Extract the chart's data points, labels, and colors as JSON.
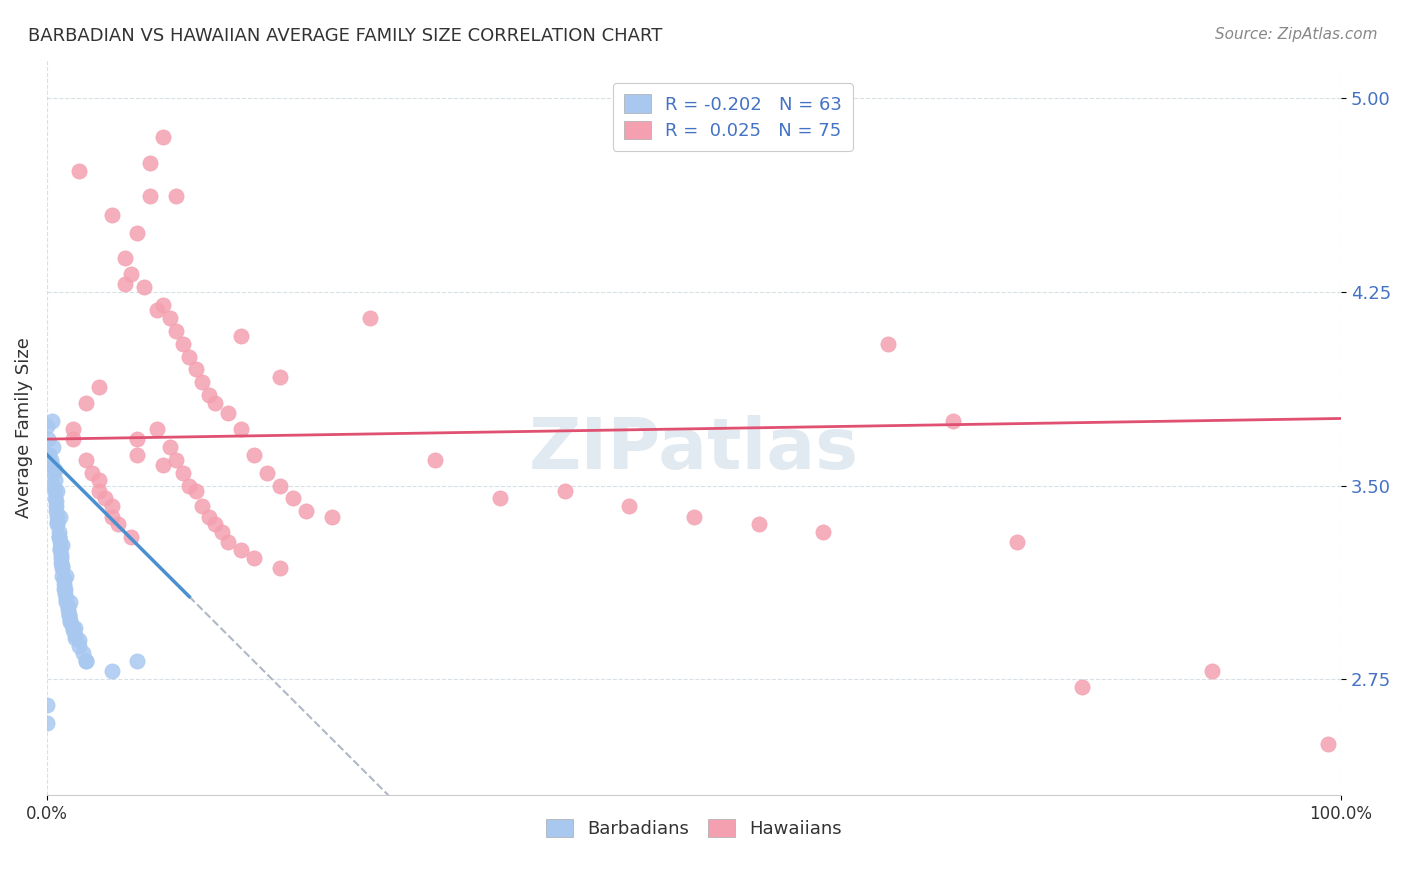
{
  "title": "BARBADIAN VS HAWAIIAN AVERAGE FAMILY SIZE CORRELATION CHART",
  "source": "Source: ZipAtlas.com",
  "ylabel": "Average Family Size",
  "yticks": [
    2.75,
    3.5,
    4.25,
    5.0
  ],
  "xlim": [
    0.0,
    1.0
  ],
  "ylim": [
    2.3,
    5.15
  ],
  "barbadian_R": "-0.202",
  "barbadian_N": "63",
  "hawaiian_R": "0.025",
  "hawaiian_N": "75",
  "barbadian_color": "#a8c8f0",
  "hawaiian_color": "#f4a0b0",
  "trend_barbadian_color": "#4a90d0",
  "trend_hawaiian_color": "#e05070",
  "trend_dashed_color": "#b0b8c8",
  "watermark_color": "#d0dce8",
  "background_color": "#ffffff",
  "barbadian_points": [
    [
      0.0,
      3.73
    ],
    [
      0.005,
      3.65
    ],
    [
      0.005,
      3.55
    ],
    [
      0.005,
      3.5
    ],
    [
      0.006,
      3.48
    ],
    [
      0.006,
      3.45
    ],
    [
      0.007,
      3.42
    ],
    [
      0.007,
      3.4
    ],
    [
      0.008,
      3.38
    ],
    [
      0.008,
      3.35
    ],
    [
      0.009,
      3.32
    ],
    [
      0.009,
      3.3
    ],
    [
      0.01,
      3.28
    ],
    [
      0.01,
      3.25
    ],
    [
      0.011,
      3.22
    ],
    [
      0.011,
      3.2
    ],
    [
      0.012,
      3.18
    ],
    [
      0.012,
      3.15
    ],
    [
      0.013,
      3.12
    ],
    [
      0.013,
      3.1
    ],
    [
      0.014,
      3.08
    ],
    [
      0.015,
      3.05
    ],
    [
      0.016,
      3.02
    ],
    [
      0.017,
      3.0
    ],
    [
      0.018,
      2.98
    ],
    [
      0.02,
      2.95
    ],
    [
      0.022,
      2.92
    ],
    [
      0.025,
      2.9
    ],
    [
      0.003,
      3.6
    ],
    [
      0.004,
      3.58
    ],
    [
      0.002,
      3.62
    ],
    [
      0.001,
      3.68
    ],
    [
      0.006,
      3.52
    ],
    [
      0.007,
      3.44
    ],
    [
      0.008,
      3.36
    ],
    [
      0.009,
      3.3
    ],
    [
      0.01,
      3.26
    ],
    [
      0.011,
      3.23
    ],
    [
      0.012,
      3.19
    ],
    [
      0.013,
      3.14
    ],
    [
      0.014,
      3.1
    ],
    [
      0.015,
      3.06
    ],
    [
      0.016,
      3.03
    ],
    [
      0.017,
      3.0
    ],
    [
      0.018,
      2.97
    ],
    [
      0.02,
      2.94
    ],
    [
      0.022,
      2.91
    ],
    [
      0.025,
      2.88
    ],
    [
      0.028,
      2.85
    ],
    [
      0.03,
      2.82
    ],
    [
      0.004,
      3.75
    ],
    [
      0.006,
      3.56
    ],
    [
      0.008,
      3.48
    ],
    [
      0.01,
      3.38
    ],
    [
      0.012,
      3.27
    ],
    [
      0.015,
      3.15
    ],
    [
      0.018,
      3.05
    ],
    [
      0.022,
      2.95
    ],
    [
      0.03,
      2.82
    ],
    [
      0.05,
      2.78
    ],
    [
      0.0,
      2.65
    ],
    [
      0.0,
      2.58
    ],
    [
      0.07,
      2.82
    ]
  ],
  "hawaiian_points": [
    [
      0.02,
      3.72
    ],
    [
      0.025,
      4.72
    ],
    [
      0.03,
      3.6
    ],
    [
      0.035,
      3.55
    ],
    [
      0.04,
      3.52
    ],
    [
      0.04,
      3.48
    ],
    [
      0.045,
      3.45
    ],
    [
      0.05,
      3.42
    ],
    [
      0.05,
      3.38
    ],
    [
      0.055,
      3.35
    ],
    [
      0.06,
      4.28
    ],
    [
      0.065,
      3.3
    ],
    [
      0.065,
      4.32
    ],
    [
      0.07,
      3.68
    ],
    [
      0.07,
      3.62
    ],
    [
      0.075,
      4.27
    ],
    [
      0.08,
      4.62
    ],
    [
      0.085,
      4.18
    ],
    [
      0.085,
      3.72
    ],
    [
      0.09,
      3.58
    ],
    [
      0.09,
      4.2
    ],
    [
      0.095,
      3.65
    ],
    [
      0.095,
      4.15
    ],
    [
      0.1,
      3.6
    ],
    [
      0.1,
      4.1
    ],
    [
      0.105,
      3.55
    ],
    [
      0.105,
      4.05
    ],
    [
      0.11,
      3.5
    ],
    [
      0.11,
      4.0
    ],
    [
      0.115,
      3.48
    ],
    [
      0.115,
      3.95
    ],
    [
      0.12,
      3.42
    ],
    [
      0.12,
      3.9
    ],
    [
      0.125,
      3.38
    ],
    [
      0.125,
      3.85
    ],
    [
      0.13,
      3.35
    ],
    [
      0.13,
      3.82
    ],
    [
      0.135,
      3.32
    ],
    [
      0.14,
      3.78
    ],
    [
      0.14,
      3.28
    ],
    [
      0.15,
      3.25
    ],
    [
      0.15,
      3.72
    ],
    [
      0.16,
      3.62
    ],
    [
      0.16,
      3.22
    ],
    [
      0.17,
      3.55
    ],
    [
      0.18,
      3.5
    ],
    [
      0.18,
      3.18
    ],
    [
      0.19,
      3.45
    ],
    [
      0.2,
      3.4
    ],
    [
      0.22,
      3.38
    ],
    [
      0.02,
      3.68
    ],
    [
      0.03,
      3.82
    ],
    [
      0.04,
      3.88
    ],
    [
      0.05,
      4.55
    ],
    [
      0.06,
      4.38
    ],
    [
      0.07,
      4.48
    ],
    [
      0.08,
      4.75
    ],
    [
      0.09,
      4.85
    ],
    [
      0.1,
      4.62
    ],
    [
      0.15,
      4.08
    ],
    [
      0.18,
      3.92
    ],
    [
      0.25,
      4.15
    ],
    [
      0.3,
      3.6
    ],
    [
      0.35,
      3.45
    ],
    [
      0.4,
      3.48
    ],
    [
      0.45,
      3.42
    ],
    [
      0.5,
      3.38
    ],
    [
      0.55,
      3.35
    ],
    [
      0.6,
      3.32
    ],
    [
      0.65,
      4.05
    ],
    [
      0.7,
      3.75
    ],
    [
      0.75,
      3.28
    ],
    [
      0.8,
      2.72
    ],
    [
      0.9,
      2.78
    ],
    [
      0.99,
      2.5
    ]
  ]
}
